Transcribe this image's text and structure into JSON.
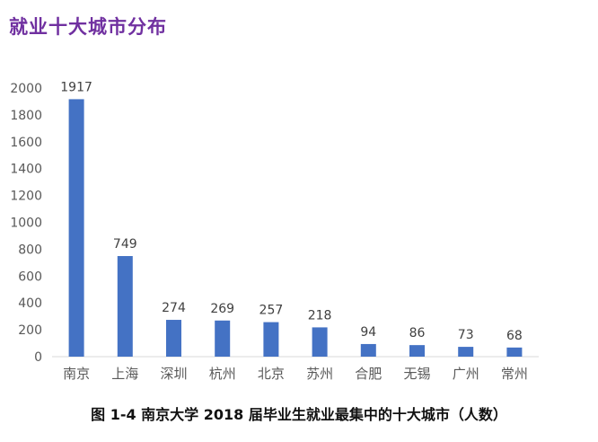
{
  "chart_data": {
    "type": "bar",
    "title": "就业十大城市分布",
    "categories": [
      "南京",
      "上海",
      "深圳",
      "杭州",
      "北京",
      "苏州",
      "合肥",
      "无锡",
      "广州",
      "常州"
    ],
    "values": [
      1917,
      749,
      274,
      269,
      257,
      218,
      94,
      86,
      73,
      68
    ],
    "ylim": [
      0,
      2000
    ],
    "yticks": [
      0,
      200,
      400,
      600,
      800,
      1000,
      1200,
      1400,
      1600,
      1800,
      2000
    ],
    "grid": false,
    "legend": "none",
    "bar_color": "#4472c4",
    "title_color": "#7030a0",
    "caption": "图 1-4   南京大学 2018 届毕业生就业最集中的十大城市（人数）"
  }
}
